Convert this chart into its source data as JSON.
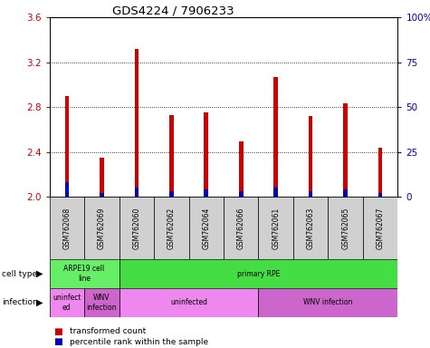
{
  "title": "GDS4224 / 7906233",
  "samples": [
    "GSM762068",
    "GSM762069",
    "GSM762060",
    "GSM762062",
    "GSM762064",
    "GSM762066",
    "GSM762061",
    "GSM762063",
    "GSM762065",
    "GSM762067"
  ],
  "transformed_counts": [
    2.9,
    2.35,
    3.32,
    2.73,
    2.75,
    2.49,
    3.07,
    2.72,
    2.83,
    2.44
  ],
  "percentile_vals": [
    8,
    2,
    5,
    3,
    4,
    3,
    5,
    3,
    4,
    2
  ],
  "y_min": 2.0,
  "y_max": 3.6,
  "y_ticks": [
    2.0,
    2.4,
    2.8,
    3.2,
    3.6
  ],
  "y2_ticks": [
    0,
    25,
    50,
    75,
    100
  ],
  "bar_color_red": "#cc0000",
  "bar_color_blue": "#0000bb",
  "cell_type_row": [
    {
      "label": "ARPE19 cell\nline",
      "start": 0,
      "end": 2,
      "color": "#66ee66"
    },
    {
      "label": "primary RPE",
      "start": 2,
      "end": 10,
      "color": "#44dd44"
    }
  ],
  "infection_row": [
    {
      "label": "uninfect\ned",
      "start": 0,
      "end": 1,
      "color": "#ee88ee"
    },
    {
      "label": "WNV\ninfection",
      "start": 1,
      "end": 2,
      "color": "#cc66cc"
    },
    {
      "label": "uninfected",
      "start": 2,
      "end": 6,
      "color": "#ee88ee"
    },
    {
      "label": "WNV infection",
      "start": 6,
      "end": 10,
      "color": "#cc66cc"
    }
  ],
  "tick_color_left": "#cc0000",
  "tick_color_right": "#0000bb",
  "bg_color": "#ffffff",
  "sample_bg_color": "#d0d0d0",
  "bar_width": 0.12
}
